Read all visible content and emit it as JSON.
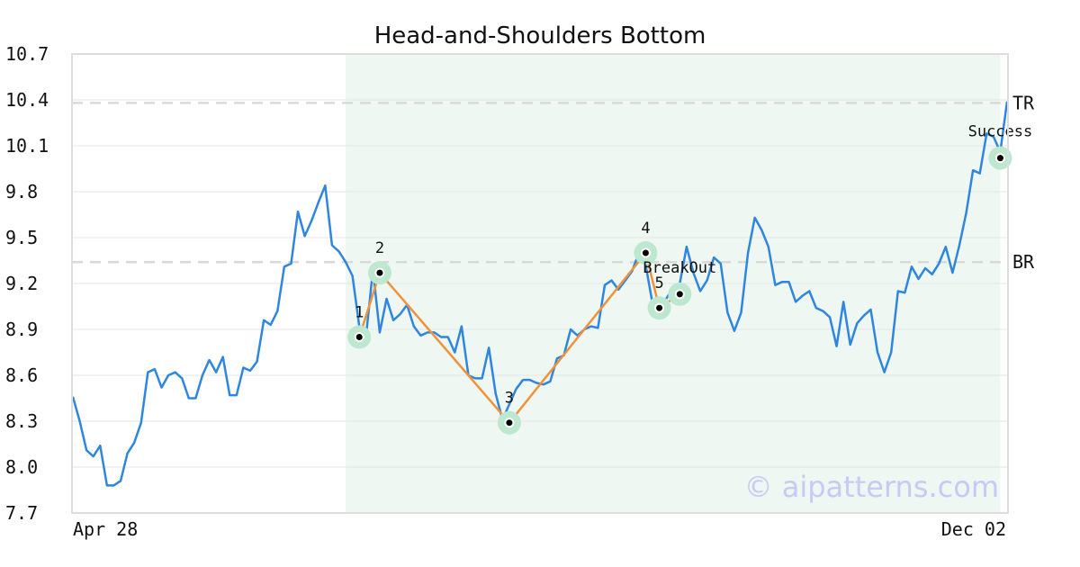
{
  "chart_data": {
    "type": "line",
    "title": "Head-and-Shoulders Bottom",
    "watermark": "© aipatterns.com",
    "x_start_label": "Apr 28",
    "x_end_label": "Dec 02",
    "yticks": [
      "10.7",
      "10.4",
      "10.1",
      "9.8",
      "9.5",
      "9.2",
      "8.9",
      "8.6",
      "8.3",
      "8.0",
      "7.7"
    ],
    "ylim": [
      7.7,
      10.7
    ],
    "grid": true,
    "series": [
      {
        "color": "#2e86de",
        "values": [
          8.46,
          8.3,
          8.11,
          8.07,
          8.14,
          7.88,
          7.88,
          7.91,
          8.09,
          8.16,
          8.29,
          8.62,
          8.64,
          8.52,
          8.6,
          8.62,
          8.58,
          8.45,
          8.45,
          8.6,
          8.7,
          8.62,
          8.72,
          8.47,
          8.47,
          8.65,
          8.63,
          8.69,
          8.96,
          8.93,
          9.02,
          9.31,
          9.33,
          9.67,
          9.51,
          9.61,
          9.73,
          9.84,
          9.45,
          9.41,
          9.34,
          9.25,
          8.92,
          8.86,
          9.29,
          8.88,
          9.1,
          8.96,
          9.0,
          9.06,
          8.92,
          8.86,
          8.88,
          8.88,
          8.85,
          8.85,
          8.75,
          8.92,
          8.6,
          8.58,
          8.58,
          8.78,
          8.48,
          8.31,
          8.41,
          8.51,
          8.57,
          8.57,
          8.55,
          8.54,
          8.56,
          8.71,
          8.73,
          8.9,
          8.86,
          8.9,
          8.92,
          8.91,
          9.19,
          9.22,
          9.16,
          9.22,
          9.28,
          9.4,
          9.32,
          9.07,
          9.06,
          9.1,
          9.17,
          9.2,
          9.44,
          9.27,
          9.15,
          9.22,
          9.37,
          9.33,
          9.01,
          8.89,
          9.01,
          9.4,
          9.63,
          9.55,
          9.44,
          9.19,
          9.21,
          9.21,
          9.08,
          9.12,
          9.15,
          9.04,
          9.02,
          8.98,
          8.79,
          9.08,
          8.8,
          8.94,
          8.99,
          9.03,
          8.75,
          8.62,
          8.75,
          9.15,
          9.14,
          9.31,
          9.23,
          9.3,
          9.26,
          9.33,
          9.44,
          9.27,
          9.45,
          9.66,
          9.94,
          9.92,
          10.18,
          10.16,
          10.06,
          10.39
        ]
      },
      {
        "color": "#f0923b",
        "values": [
          8.85,
          9.27,
          8.29,
          9.4,
          9.04,
          9.13
        ]
      }
    ],
    "level_lines": [
      {
        "label": "TR",
        "value": 10.38
      },
      {
        "label": "BR",
        "value": 9.34
      }
    ],
    "pattern_points": [
      {
        "label": "1",
        "index": 42,
        "value": 8.85
      },
      {
        "label": "2",
        "index": 45,
        "value": 9.27
      },
      {
        "label": "3",
        "index": 64,
        "value": 8.29
      },
      {
        "label": "4",
        "index": 84,
        "value": 9.4
      },
      {
        "label": "5",
        "index": 86,
        "value": 9.04
      },
      {
        "label": "",
        "index": 89,
        "value": 9.13
      }
    ],
    "annotations": [
      {
        "text": "BreakOut",
        "index": 89,
        "value": 9.13
      },
      {
        "text": "Success",
        "index": 136,
        "value": 10.02
      }
    ],
    "highlight_range": [
      40,
      136
    ],
    "highlight_color": "#eef7f2",
    "marker_halo_color": "#bde8cf"
  }
}
